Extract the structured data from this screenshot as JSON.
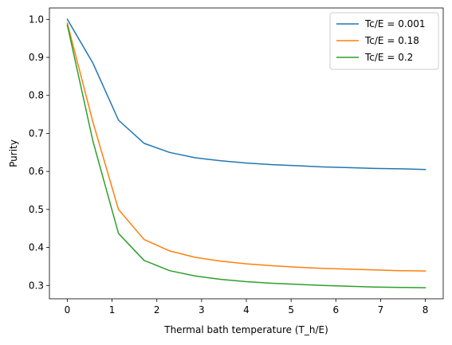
{
  "chart_data": {
    "type": "line",
    "xlabel": "Thermal bath temperature (T_h/E)",
    "ylabel": "Purity",
    "xlim": [
      -0.4,
      8.4
    ],
    "ylim": [
      0.265,
      1.03
    ],
    "xticks": [
      0,
      1,
      2,
      3,
      4,
      5,
      6,
      7,
      8
    ],
    "yticks": [
      0.3,
      0.4,
      0.5,
      0.6,
      0.7,
      0.8,
      0.9,
      1.0
    ],
    "ytick_labels": [
      "0.3",
      "0.4",
      "0.5",
      "0.6",
      "0.7",
      "0.8",
      "0.9",
      "1.0"
    ],
    "grid": false,
    "legend_position": "top-right",
    "x": [
      0.0,
      0.5714,
      1.1429,
      1.7143,
      2.2857,
      2.8571,
      3.4286,
      4.0,
      4.5714,
      5.1429,
      5.7143,
      6.2857,
      6.8571,
      7.4286,
      8.0
    ],
    "series": [
      {
        "name": "Tc/E = 0.001",
        "color": "#1f77b4",
        "values": [
          1.0,
          0.885,
          0.735,
          0.674,
          0.65,
          0.636,
          0.628,
          0.622,
          0.618,
          0.615,
          0.612,
          0.61,
          0.608,
          0.607,
          0.605
        ]
      },
      {
        "name": "Tc/E = 0.18",
        "color": "#ff7f0e",
        "values": [
          0.99,
          0.73,
          0.5,
          0.421,
          0.391,
          0.374,
          0.364,
          0.357,
          0.352,
          0.348,
          0.345,
          0.343,
          0.341,
          0.339,
          0.338
        ]
      },
      {
        "name": "Tc/E = 0.2",
        "color": "#2ca02c",
        "values": [
          0.985,
          0.68,
          0.437,
          0.366,
          0.339,
          0.325,
          0.316,
          0.31,
          0.306,
          0.303,
          0.3,
          0.298,
          0.296,
          0.295,
          0.294
        ]
      }
    ]
  }
}
